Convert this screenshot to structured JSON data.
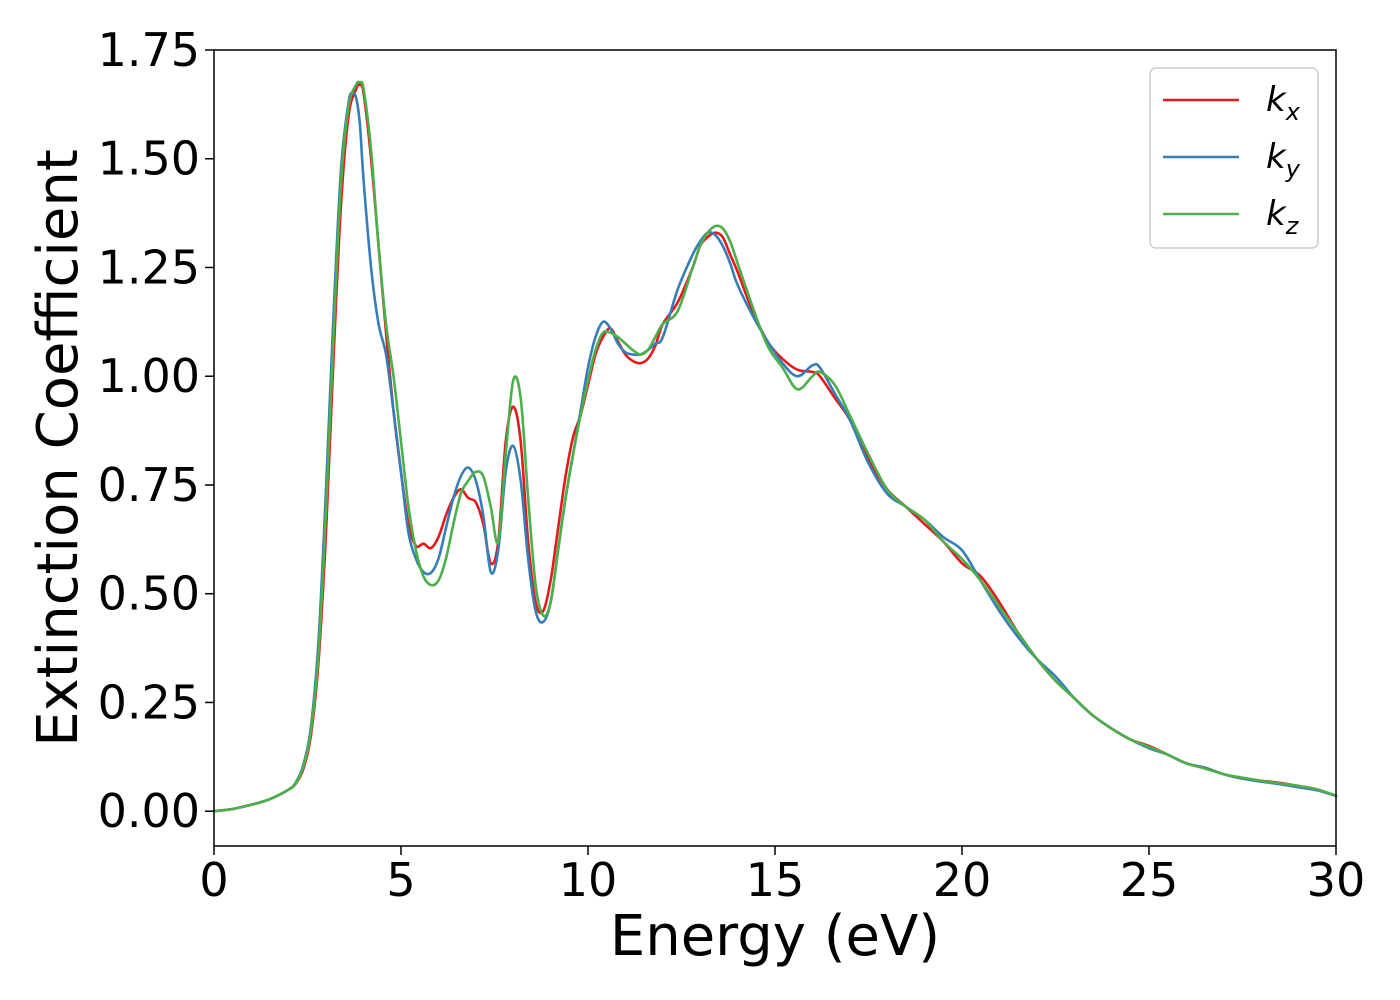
{
  "chart_data": {
    "type": "line",
    "title": "",
    "xlabel": "Energy (eV)",
    "ylabel": "Extinction Coefficient",
    "xlim": [
      0,
      30
    ],
    "ylim": [
      -0.08,
      1.75
    ],
    "xticks": [
      0,
      5,
      10,
      15,
      20,
      25,
      30
    ],
    "xtick_labels": [
      "0",
      "5",
      "10",
      "15",
      "20",
      "25",
      "30"
    ],
    "yticks": [
      0.0,
      0.25,
      0.5,
      0.75,
      1.0,
      1.25,
      1.5,
      1.75
    ],
    "ytick_labels": [
      "0.00",
      "0.25",
      "0.50",
      "0.75",
      "1.00",
      "1.25",
      "1.50",
      "1.75"
    ],
    "grid": false,
    "legend_position": "top-right",
    "series": [
      {
        "name": "k",
        "subscript": "x",
        "color": "#e41a1c",
        "x": [
          0,
          0.5,
          1,
          1.5,
          2,
          2.2,
          2.4,
          2.6,
          2.8,
          3.0,
          3.2,
          3.4,
          3.6,
          3.8,
          3.9,
          4.0,
          4.2,
          4.4,
          4.6,
          4.8,
          5.0,
          5.2,
          5.4,
          5.6,
          5.8,
          6.0,
          6.2,
          6.4,
          6.6,
          6.8,
          7.0,
          7.2,
          7.4,
          7.6,
          7.8,
          8.0,
          8.2,
          8.4,
          8.6,
          8.8,
          9.0,
          9.2,
          9.4,
          9.6,
          9.8,
          10.0,
          10.2,
          10.4,
          10.6,
          10.8,
          11.0,
          11.2,
          11.4,
          11.6,
          11.8,
          12.0,
          12.4,
          12.8,
          13.0,
          13.2,
          13.4,
          13.6,
          13.8,
          14.0,
          14.4,
          14.8,
          15.2,
          15.6,
          16.0,
          16.2,
          16.6,
          17.0,
          17.5,
          18.0,
          18.5,
          19.0,
          19.5,
          20.0,
          20.5,
          21.0,
          21.5,
          22.0,
          22.5,
          23.0,
          23.5,
          24.0,
          24.5,
          25.0,
          25.5,
          26.0,
          26.5,
          27.0,
          27.5,
          28.0,
          28.5,
          29.0,
          29.5,
          30.0
        ],
        "y": [
          0.0,
          0.005,
          0.015,
          0.028,
          0.05,
          0.065,
          0.1,
          0.18,
          0.35,
          0.65,
          1.05,
          1.4,
          1.6,
          1.66,
          1.67,
          1.65,
          1.5,
          1.3,
          1.1,
          0.92,
          0.78,
          0.66,
          0.61,
          0.615,
          0.605,
          0.63,
          0.68,
          0.72,
          0.74,
          0.72,
          0.71,
          0.66,
          0.57,
          0.62,
          0.85,
          0.93,
          0.85,
          0.62,
          0.48,
          0.46,
          0.53,
          0.65,
          0.77,
          0.86,
          0.91,
          0.98,
          1.05,
          1.09,
          1.11,
          1.08,
          1.05,
          1.035,
          1.03,
          1.04,
          1.07,
          1.12,
          1.17,
          1.25,
          1.3,
          1.32,
          1.33,
          1.32,
          1.28,
          1.24,
          1.15,
          1.08,
          1.04,
          1.015,
          1.01,
          1.0,
          0.95,
          0.9,
          0.81,
          0.74,
          0.7,
          0.66,
          0.62,
          0.57,
          0.54,
          0.48,
          0.41,
          0.35,
          0.3,
          0.26,
          0.22,
          0.19,
          0.165,
          0.15,
          0.13,
          0.11,
          0.1,
          0.085,
          0.075,
          0.07,
          0.065,
          0.058,
          0.05,
          0.035
        ]
      },
      {
        "name": "k",
        "subscript": "y",
        "color": "#377eb8",
        "x": [
          0,
          0.5,
          1,
          1.5,
          2,
          2.2,
          2.4,
          2.6,
          2.8,
          3.0,
          3.2,
          3.4,
          3.6,
          3.7,
          3.8,
          3.9,
          4.0,
          4.2,
          4.4,
          4.6,
          4.8,
          5.0,
          5.2,
          5.4,
          5.6,
          5.8,
          6.0,
          6.2,
          6.4,
          6.6,
          6.8,
          7.0,
          7.2,
          7.4,
          7.6,
          7.8,
          8.0,
          8.2,
          8.4,
          8.6,
          8.8,
          9.0,
          9.2,
          9.4,
          9.6,
          9.8,
          10.0,
          10.2,
          10.4,
          10.6,
          10.8,
          11.0,
          11.2,
          11.4,
          11.6,
          11.8,
          12.0,
          12.4,
          12.8,
          13.0,
          13.2,
          13.4,
          13.6,
          13.8,
          14.0,
          14.4,
          14.8,
          15.2,
          15.6,
          16.0,
          16.2,
          16.6,
          17.0,
          17.5,
          18.0,
          18.5,
          19.0,
          19.5,
          20.0,
          20.5,
          21.0,
          21.5,
          22.0,
          22.5,
          23.0,
          23.5,
          24.0,
          24.5,
          25.0,
          25.5,
          26.0,
          26.5,
          27.0,
          27.5,
          28.0,
          28.5,
          29.0,
          29.5,
          30.0
        ],
        "y": [
          0.0,
          0.005,
          0.015,
          0.028,
          0.05,
          0.068,
          0.11,
          0.2,
          0.4,
          0.75,
          1.15,
          1.48,
          1.63,
          1.65,
          1.64,
          1.58,
          1.45,
          1.25,
          1.12,
          1.05,
          0.92,
          0.78,
          0.64,
          0.58,
          0.55,
          0.548,
          0.58,
          0.65,
          0.72,
          0.77,
          0.79,
          0.76,
          0.68,
          0.55,
          0.6,
          0.78,
          0.84,
          0.76,
          0.58,
          0.46,
          0.435,
          0.48,
          0.6,
          0.72,
          0.82,
          0.92,
          1.02,
          1.09,
          1.125,
          1.11,
          1.075,
          1.055,
          1.05,
          1.05,
          1.06,
          1.075,
          1.09,
          1.2,
          1.28,
          1.31,
          1.33,
          1.325,
          1.3,
          1.26,
          1.21,
          1.14,
          1.08,
          1.03,
          1.0,
          1.025,
          1.02,
          0.96,
          0.9,
          0.8,
          0.73,
          0.7,
          0.67,
          0.63,
          0.6,
          0.53,
          0.46,
          0.4,
          0.35,
          0.31,
          0.26,
          0.22,
          0.19,
          0.165,
          0.145,
          0.13,
          0.11,
          0.1,
          0.085,
          0.075,
          0.068,
          0.062,
          0.055,
          0.048,
          0.035
        ]
      },
      {
        "name": "k",
        "subscript": "z",
        "color": "#4daf4a",
        "x": [
          0,
          0.5,
          1,
          1.5,
          2,
          2.2,
          2.4,
          2.6,
          2.8,
          3.0,
          3.2,
          3.4,
          3.6,
          3.8,
          3.9,
          4.0,
          4.2,
          4.4,
          4.6,
          4.8,
          5.0,
          5.2,
          5.4,
          5.6,
          5.8,
          6.0,
          6.2,
          6.4,
          6.6,
          6.8,
          7.0,
          7.2,
          7.4,
          7.6,
          7.8,
          8.0,
          8.2,
          8.4,
          8.6,
          8.8,
          9.0,
          9.2,
          9.4,
          9.6,
          9.8,
          10.0,
          10.2,
          10.4,
          10.6,
          10.8,
          11.0,
          11.2,
          11.4,
          11.6,
          11.8,
          12.0,
          12.4,
          12.8,
          13.0,
          13.2,
          13.4,
          13.6,
          13.8,
          14.0,
          14.4,
          14.8,
          15.2,
          15.6,
          16.0,
          16.2,
          16.6,
          17.0,
          17.5,
          18.0,
          18.5,
          19.0,
          19.5,
          20.0,
          20.5,
          21.0,
          21.5,
          22.0,
          22.5,
          23.0,
          23.5,
          24.0,
          24.5,
          25.0,
          25.5,
          26.0,
          26.5,
          27.0,
          27.5,
          28.0,
          28.5,
          29.0,
          29.5,
          30.0
        ],
        "y": [
          0.0,
          0.005,
          0.015,
          0.028,
          0.05,
          0.066,
          0.105,
          0.19,
          0.37,
          0.7,
          1.1,
          1.45,
          1.62,
          1.67,
          1.675,
          1.66,
          1.52,
          1.3,
          1.12,
          1.0,
          0.85,
          0.7,
          0.6,
          0.54,
          0.52,
          0.53,
          0.58,
          0.66,
          0.73,
          0.76,
          0.78,
          0.77,
          0.7,
          0.62,
          0.82,
          0.99,
          0.95,
          0.72,
          0.52,
          0.45,
          0.48,
          0.6,
          0.72,
          0.82,
          0.91,
          0.99,
          1.06,
          1.1,
          1.1,
          1.09,
          1.075,
          1.06,
          1.05,
          1.06,
          1.09,
          1.12,
          1.15,
          1.25,
          1.3,
          1.33,
          1.345,
          1.34,
          1.31,
          1.26,
          1.16,
          1.07,
          1.02,
          0.97,
          1.0,
          1.01,
          0.98,
          0.91,
          0.82,
          0.74,
          0.7,
          0.67,
          0.62,
          0.58,
          0.53,
          0.47,
          0.41,
          0.35,
          0.3,
          0.26,
          0.22,
          0.19,
          0.165,
          0.148,
          0.13,
          0.11,
          0.098,
          0.085,
          0.077,
          0.07,
          0.064,
          0.058,
          0.05,
          0.036
        ]
      }
    ]
  }
}
